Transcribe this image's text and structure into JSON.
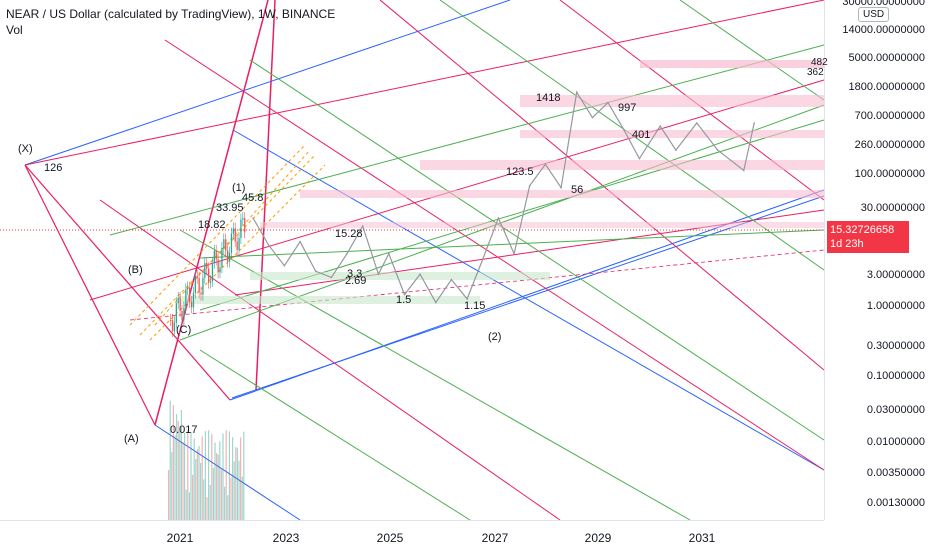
{
  "legend": {
    "symbol": "NEAR / US Dollar (calculated by TradingView), 1W, BINANCE",
    "vol": "Vol"
  },
  "price_axis": {
    "currency_button": "USD",
    "labels": [
      "30000.00000000",
      "14000.00000000",
      "5000.00000000",
      "1800.00000000",
      "700.00000000",
      "260.00000000",
      "100.00000000",
      "30.00000000",
      "3.00000000",
      "1.00000000",
      "0.30000000",
      "0.10000000",
      "0.03000000",
      "0.01000000",
      "0.00350000",
      "0.00130000"
    ],
    "current_price": "15.32726658",
    "countdown": "1d 23h",
    "edge_values": [
      "482",
      "362"
    ]
  },
  "time_axis": {
    "labels": [
      "2021",
      "2023",
      "2025",
      "2027",
      "2029",
      "2031"
    ]
  },
  "annotations": {
    "x_point": "(X)",
    "x_value": "126",
    "a_point": "(A)",
    "a_value": "0.017",
    "b_point": "(B)",
    "c_point": "(C)",
    "wave1": "(1)",
    "wave2": "(2)",
    "v4595": "45.8",
    "v3395": "33.95",
    "v1882": "18.82",
    "v1528": "15.28",
    "v33": "3.3",
    "v269": "2.69",
    "v15": "1.5",
    "v115": "1.15",
    "v1235": "123.5",
    "v56": "56",
    "v1418": "1418",
    "v997": "997",
    "v401": "401"
  },
  "colors": {
    "up": "#26a69a",
    "down": "#ef5350",
    "blue": "#2962ff",
    "pink": "#e91e63",
    "green": "#4caf50",
    "orange": "#ff9800",
    "price_tag": "#f23645"
  },
  "chart_data": {
    "type": "line",
    "title": "NEAR / US Dollar (calculated by TradingView), 1W, BINANCE",
    "y_scale": "log",
    "ylim": [
      0.0008,
      40000
    ],
    "x_range": [
      "2020",
      "2032"
    ],
    "series": [
      {
        "values": [
          {
            "x": "2022.4",
            "y": 20
          },
          {
            "x": "2022.7",
            "y": 8
          },
          {
            "x": "2023.0",
            "y": 4
          },
          {
            "x": "2023.3",
            "y": 9
          },
          {
            "x": "2023.6",
            "y": 3.3
          },
          {
            "x": "2023.9",
            "y": 2.69
          },
          {
            "x": "2024.2",
            "y": 6
          },
          {
            "x": "2024.5",
            "y": 15.28
          },
          {
            "x": "2024.8",
            "y": 3
          },
          {
            "x": "2025.0",
            "y": 6
          },
          {
            "x": "2025.3",
            "y": 1.5
          },
          {
            "x": "2025.6",
            "y": 3
          },
          {
            "x": "2025.9",
            "y": 1.15
          },
          {
            "x": "2026.2",
            "y": 2.5
          },
          {
            "x": "2026.5",
            "y": 1.3
          },
          {
            "x": "2026.8",
            "y": 5
          },
          {
            "x": "2027.1",
            "y": 20
          },
          {
            "x": "2027.4",
            "y": 6
          },
          {
            "x": "2027.7",
            "y": 60
          },
          {
            "x": "2028.0",
            "y": 123.5
          },
          {
            "x": "2028.3",
            "y": 56
          },
          {
            "x": "2028.6",
            "y": 1418
          },
          {
            "x": "2028.9",
            "y": 600
          },
          {
            "x": "2029.2",
            "y": 997
          },
          {
            "x": "2029.5",
            "y": 401
          },
          {
            "x": "2029.8",
            "y": 150
          },
          {
            "x": "2030.2",
            "y": 450
          },
          {
            "x": "2030.5",
            "y": 200
          },
          {
            "x": "2030.9",
            "y": 500
          },
          {
            "x": "2031.3",
            "y": 200
          },
          {
            "x": "2031.8",
            "y": 100
          },
          {
            "x": "2032.0",
            "y": 500
          }
        ]
      }
    ],
    "grid": false,
    "current_price": 15.32726658
  }
}
